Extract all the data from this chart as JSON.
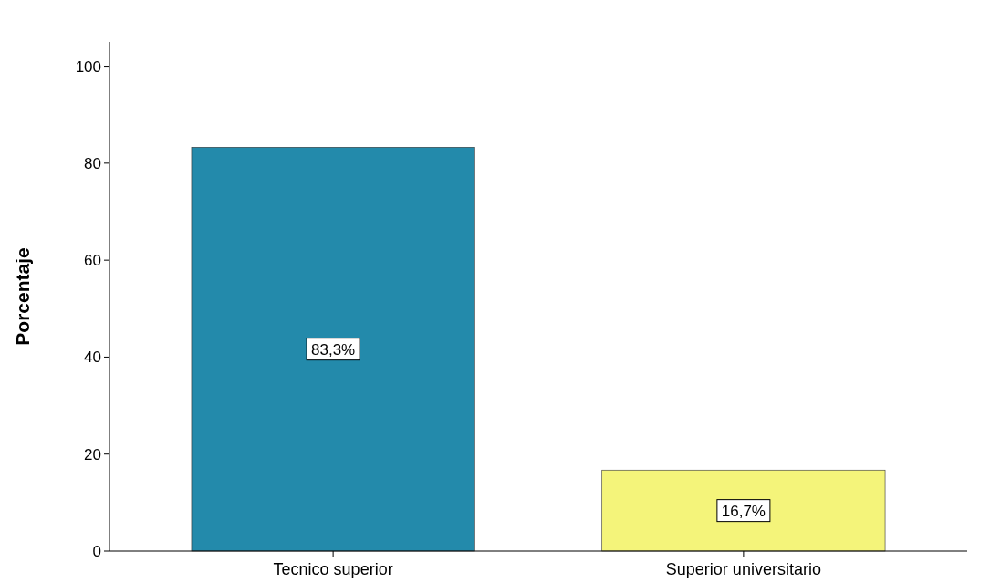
{
  "chart_data": {
    "type": "bar",
    "ylabel": "Porcentaje",
    "categories": [
      "Tecnico superior",
      "Superior universitario"
    ],
    "values": [
      83.3,
      16.7
    ],
    "colors": [
      "#238aab",
      "#f4f47a"
    ],
    "value_labels": [
      "83,3%",
      "16,7%"
    ],
    "ylim": [
      0,
      105
    ],
    "yticks": [
      0,
      20,
      40,
      60,
      80,
      100
    ]
  }
}
